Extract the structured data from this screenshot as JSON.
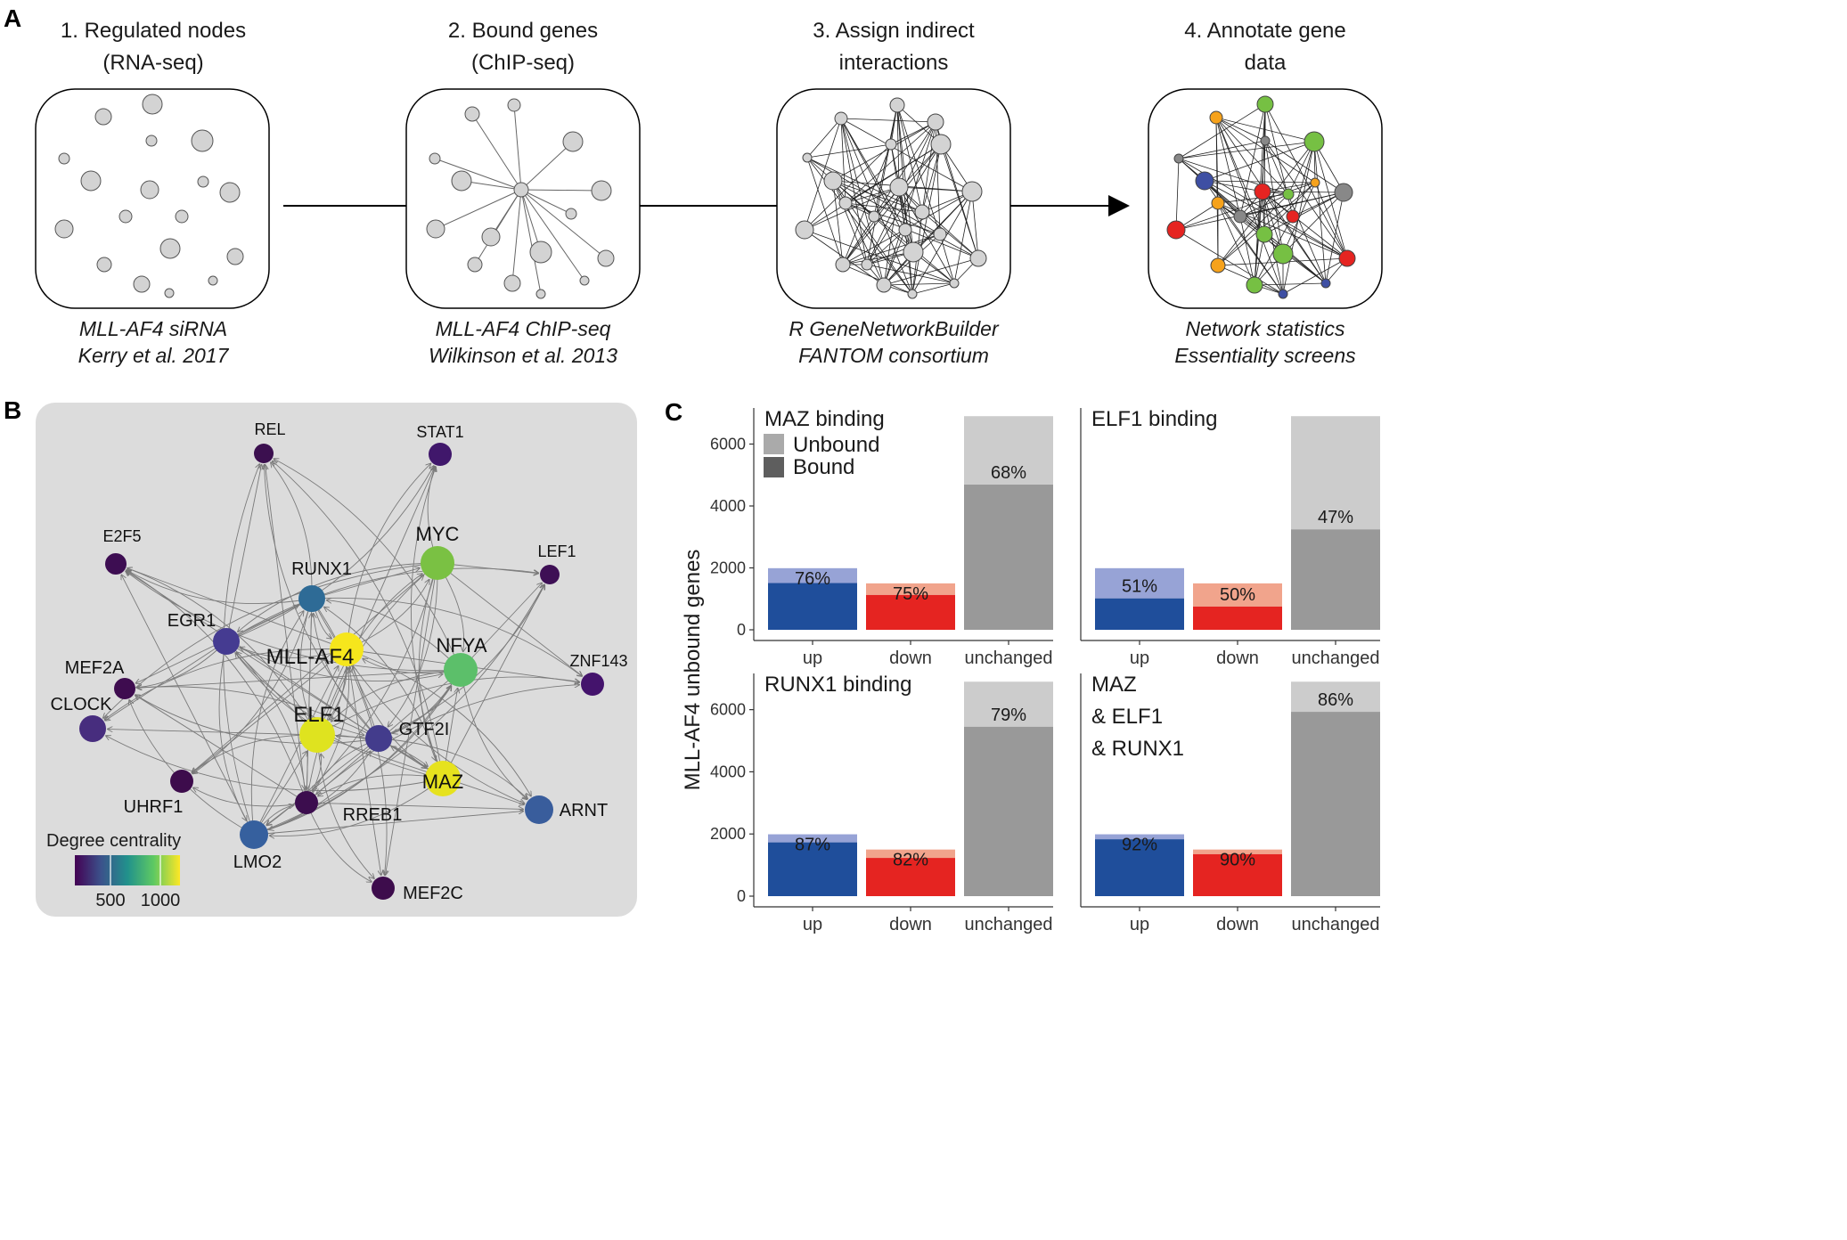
{
  "panel_labels": {
    "a": "A",
    "b": "B",
    "c": "C"
  },
  "panel_a": {
    "steps": [
      {
        "title_1": "1. Regulated nodes",
        "title_2": "(RNA-seq)",
        "caption_1": "MLL-AF4 siRNA",
        "caption_2": "Kerry et al. 2017"
      },
      {
        "title_1": "2. Bound genes",
        "title_2": "(ChIP-seq)",
        "caption_1": "MLL-AF4 ChIP-seq",
        "caption_2": "Wilkinson et al. 2013"
      },
      {
        "title_1": "3. Assign indirect",
        "title_2": "interactions",
        "caption_1": "R GeneNetworkBuilder",
        "caption_2": "FANTOM consortium"
      },
      {
        "title_1": "4. Annotate gene",
        "title_2": "data",
        "caption_1": "Network statistics",
        "caption_2": "Essentiality screens"
      }
    ]
  },
  "panel_b": {
    "nodes": [
      {
        "label": "REL",
        "color": "#3b0f4f"
      },
      {
        "label": "STAT1",
        "color": "#40176b"
      },
      {
        "label": "E2F5",
        "color": "#3d0d52"
      },
      {
        "label": "LEF1",
        "color": "#3e0f55"
      },
      {
        "label": "MYC",
        "color": "#7ac143"
      },
      {
        "label": "RUNX1",
        "color": "#2e6b96"
      },
      {
        "label": "EGR1",
        "color": "#453b91"
      },
      {
        "label": "MLL-AF4",
        "color": "#f6e61c"
      },
      {
        "label": "NFYA",
        "color": "#5cbf6a"
      },
      {
        "label": "ZNF143",
        "color": "#44136c"
      },
      {
        "label": "MEF2A",
        "color": "#3e0c4f"
      },
      {
        "label": "CLOCK",
        "color": "#472d7e"
      },
      {
        "label": "ELF1",
        "color": "#dfe31f"
      },
      {
        "label": "GTF2I",
        "color": "#433c8c"
      },
      {
        "label": "UHRF1",
        "color": "#3d0c4c"
      },
      {
        "label": "RREB1",
        "color": "#3c0d4e"
      },
      {
        "label": "MAZ",
        "color": "#e6e21e"
      },
      {
        "label": "ARNT",
        "color": "#395d9c"
      },
      {
        "label": "LMO2",
        "color": "#36609e"
      },
      {
        "label": "MEF2C",
        "color": "#3d0c4c"
      }
    ],
    "legend": {
      "title": "Degree centrality",
      "tick_1": "500",
      "tick_2": "1000"
    }
  },
  "colors": {
    "up_dark": "#1f4e9b",
    "up_light": "#97a3d6",
    "down_dark": "#e52421",
    "down_light": "#f1a48c",
    "unch_dark": "#999999",
    "unch_light": "#cccccc"
  },
  "chart_data": {
    "type": "bar",
    "stacked": true,
    "ylabel": "MLL-AF4 unbound genes",
    "ylim": [
      0,
      7000
    ],
    "yticks": [
      "0",
      "2000",
      "4000",
      "6000"
    ],
    "categories": [
      "up",
      "down",
      "unchanged"
    ],
    "legend": {
      "unbound": "Unbound",
      "bound": "Bound"
    },
    "panels": [
      {
        "title_lines": [
          "MAZ binding"
        ],
        "totals": [
          1990,
          1500,
          6900
        ],
        "unbound": [
          1510,
          1125,
          4690
        ],
        "percent_labels": [
          "76%",
          "75%",
          "68%"
        ]
      },
      {
        "title_lines": [
          "ELF1 binding"
        ],
        "totals": [
          1990,
          1500,
          6900
        ],
        "unbound": [
          1015,
          750,
          3245
        ],
        "percent_labels": [
          "51%",
          "50%",
          "47%"
        ]
      },
      {
        "title_lines": [
          "RUNX1 binding"
        ],
        "totals": [
          1990,
          1500,
          6900
        ],
        "unbound": [
          1730,
          1230,
          5450
        ],
        "percent_labels": [
          "87%",
          "82%",
          "79%"
        ]
      },
      {
        "title_lines": [
          "MAZ",
          "& ELF1",
          "& RUNX1"
        ],
        "totals": [
          1990,
          1500,
          6900
        ],
        "unbound": [
          1830,
          1350,
          5930
        ],
        "percent_labels": [
          "92%",
          "90%",
          "86%"
        ]
      }
    ]
  }
}
